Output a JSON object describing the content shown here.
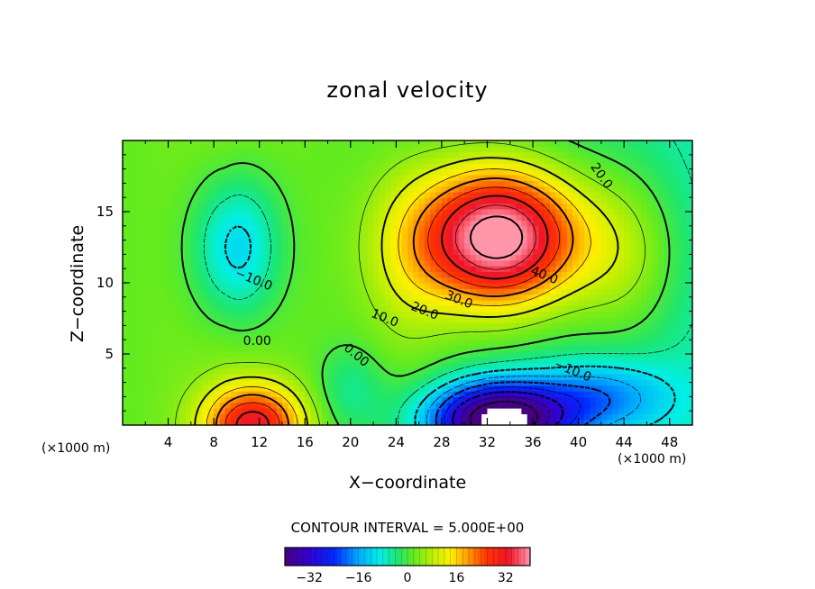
{
  "chart_data": {
    "type": "contour",
    "title": "zonal velocity",
    "xlabel": "X−coordinate",
    "ylabel": "Z−coordinate",
    "x_unit_label": "(×1000 m)",
    "x_unit_label_right": "(×1000 m)",
    "xlim": [
      0,
      50
    ],
    "ylim": [
      0,
      20
    ],
    "x_ticks": [
      "4",
      "8",
      "12",
      "16",
      "20",
      "24",
      "28",
      "32",
      "36",
      "40",
      "44",
      "48"
    ],
    "y_ticks": [
      "5",
      "10",
      "15"
    ],
    "contour_interval_text": "CONTOUR INTERVAL = 5.000E+00",
    "contour_interval": 5,
    "contour_labels": [
      {
        "text": "20.0",
        "x": 42.0,
        "y": 17.5
      },
      {
        "text": "40.0",
        "x": 37.0,
        "y": 10.5
      },
      {
        "text": "30.0",
        "x": 29.5,
        "y": 8.8
      },
      {
        "text": "20.0",
        "x": 26.5,
        "y": 8.0
      },
      {
        "text": "10.0",
        "x": 23.0,
        "y": 7.5
      },
      {
        "text": "−10.0",
        "x": 11.5,
        "y": 10.2
      },
      {
        "text": "0.00",
        "x": 11.8,
        "y": 5.9
      },
      {
        "text": "0.00",
        "x": 20.5,
        "y": 4.9
      },
      {
        "text": "−10.0",
        "x": 39.5,
        "y": 3.8
      }
    ],
    "features": [
      {
        "name": "upper positive jet",
        "x": 32,
        "y": 13,
        "peak": 45
      },
      {
        "name": "lower positive core",
        "x": 11,
        "y": 0.5,
        "peak": 25
      },
      {
        "name": "negative core aloft",
        "x": 10,
        "y": 12,
        "peak": -12
      },
      {
        "name": "lower negative core",
        "x": 33,
        "y": 1,
        "peak": -38
      }
    ],
    "colorbar": {
      "range": [
        -40,
        40
      ],
      "ticks": [
        "−32",
        "−16",
        "0",
        "16",
        "32"
      ]
    }
  }
}
